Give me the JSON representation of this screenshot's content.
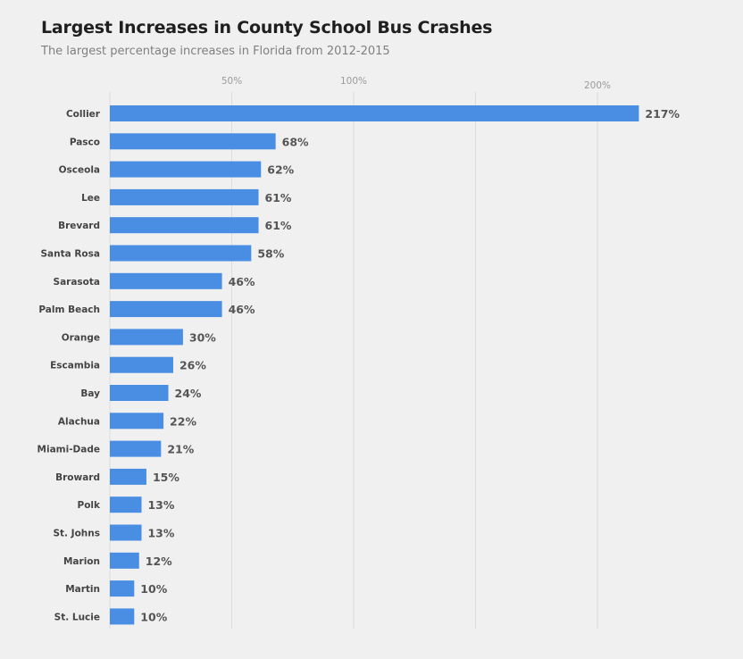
{
  "chart_data": {
    "type": "bar",
    "orientation": "horizontal",
    "title": "Largest Increases in County School Bus Crashes",
    "subtitle": "The largest percentage increases in Florida from 2012-2015",
    "categories": [
      "Collier",
      "Pasco",
      "Osceola",
      "Lee",
      "Brevard",
      "Santa Rosa",
      "Sarasota",
      "Palm Beach",
      "Orange",
      "Escambia",
      "Bay",
      "Alachua",
      "Miami-Dade",
      "Broward",
      "Polk",
      "St. Johns",
      "Marion",
      "Martin",
      "St. Lucie"
    ],
    "values": [
      217,
      68,
      62,
      61,
      61,
      58,
      46,
      46,
      30,
      26,
      24,
      22,
      21,
      15,
      13,
      13,
      12,
      10,
      10
    ],
    "value_labels": [
      "217%",
      "68%",
      "62%",
      "61%",
      "61%",
      "58%",
      "46%",
      "46%",
      "30%",
      "26%",
      "24%",
      "22%",
      "21%",
      "15%",
      "13%",
      "13%",
      "12%",
      "10%",
      "10%"
    ],
    "x_ticks": [
      {
        "value": 50,
        "label": "50%"
      },
      {
        "value": 100,
        "label": "100%"
      },
      {
        "value": 200,
        "label": "200%"
      }
    ],
    "xlim": [
      0,
      220
    ],
    "grid": true,
    "bar_color": "#4a8ee4"
  }
}
